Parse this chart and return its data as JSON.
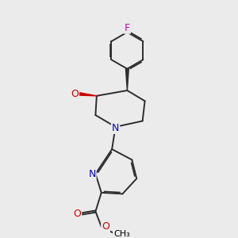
{
  "bg_color": "#ebebeb",
  "atom_colors": {
    "C": "#000000",
    "H": "#000000",
    "N": "#0000cc",
    "O": "#cc0000",
    "F": "#cc00cc"
  },
  "bond_color": "#2d2d2d",
  "bond_width": 1.4,
  "title": ""
}
